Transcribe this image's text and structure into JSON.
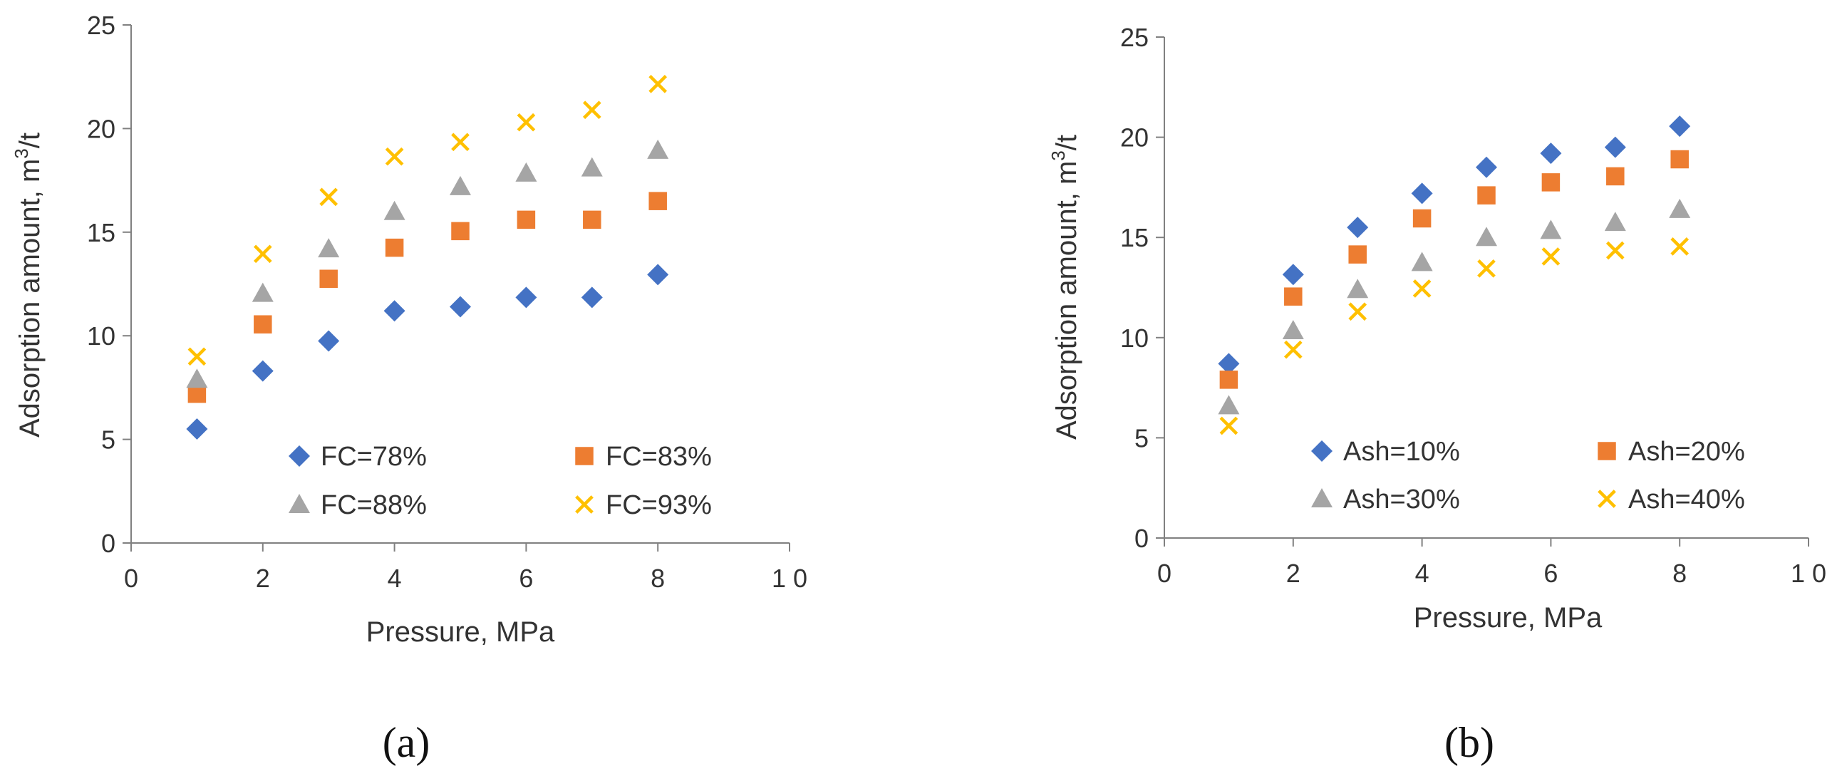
{
  "colors": {
    "diamond": "#4472C4",
    "square": "#ED7D31",
    "triangle": "#A5A5A5",
    "cross": "#FFC000",
    "axis": "#808080",
    "text": "#333333"
  },
  "chart_data": [
    {
      "type": "scatter",
      "panel_label": "(a)",
      "xlabel": "Pressure, MPa",
      "ylabel": "Adsorption amount, m³/t",
      "xlim": [
        0,
        10
      ],
      "ylim": [
        0,
        25
      ],
      "x_ticks": [
        "0",
        "2",
        "4",
        "6",
        "8",
        "1 0"
      ],
      "y_ticks": [
        "0",
        "5",
        "10",
        "15",
        "20",
        "25"
      ],
      "grid": false,
      "legend": "inside, lower-right, two columns",
      "series": [
        {
          "name": "FC=78%",
          "marker": "diamond",
          "x": [
            1,
            2,
            3,
            4,
            5,
            6,
            7,
            8
          ],
          "y": [
            5.5,
            8.3,
            9.75,
            11.2,
            11.4,
            11.85,
            11.85,
            12.95
          ]
        },
        {
          "name": "FC=83%",
          "marker": "square",
          "x": [
            1,
            2,
            3,
            4,
            5,
            6,
            7,
            8
          ],
          "y": [
            7.2,
            10.55,
            12.75,
            14.25,
            15.05,
            15.6,
            15.6,
            16.5
          ]
        },
        {
          "name": "FC=88%",
          "marker": "triangle",
          "x": [
            1,
            2,
            3,
            4,
            5,
            6,
            7,
            8
          ],
          "y": [
            7.9,
            12.05,
            14.2,
            16.0,
            17.2,
            17.85,
            18.1,
            18.95
          ]
        },
        {
          "name": "FC=93%",
          "marker": "cross",
          "x": [
            1,
            2,
            3,
            4,
            5,
            6,
            7,
            8
          ],
          "y": [
            9.0,
            13.95,
            16.7,
            18.65,
            19.35,
            20.3,
            20.9,
            22.15
          ]
        }
      ]
    },
    {
      "type": "scatter",
      "panel_label": "(b)",
      "xlabel": "Pressure, MPa",
      "ylabel": "Adsorption amount, m³/t",
      "xlim": [
        0,
        10
      ],
      "ylim": [
        0,
        25
      ],
      "x_ticks": [
        "0",
        "2",
        "4",
        "6",
        "8",
        "1 0"
      ],
      "y_ticks": [
        "0",
        "5",
        "10",
        "15",
        "20",
        "25"
      ],
      "grid": false,
      "legend": "inside, lower-right, two columns",
      "series": [
        {
          "name": "Ash=10%",
          "marker": "diamond",
          "x": [
            1,
            2,
            3,
            4,
            5,
            6,
            7,
            8
          ],
          "y": [
            8.7,
            13.15,
            15.5,
            17.2,
            18.5,
            19.2,
            19.5,
            20.55
          ]
        },
        {
          "name": "Ash=20%",
          "marker": "square",
          "x": [
            1,
            2,
            3,
            4,
            5,
            6,
            7,
            8
          ],
          "y": [
            7.9,
            12.05,
            14.15,
            15.95,
            17.1,
            17.75,
            18.05,
            18.9
          ]
        },
        {
          "name": "Ash=30%",
          "marker": "triangle",
          "x": [
            1,
            2,
            3,
            4,
            5,
            6,
            7,
            8
          ],
          "y": [
            6.6,
            10.35,
            12.4,
            13.75,
            15.0,
            15.35,
            15.75,
            16.4
          ]
        },
        {
          "name": "Ash=40%",
          "marker": "cross",
          "x": [
            1,
            2,
            3,
            4,
            5,
            6,
            7,
            8
          ],
          "y": [
            5.6,
            9.4,
            11.3,
            12.45,
            13.45,
            14.05,
            14.35,
            14.55
          ]
        }
      ]
    }
  ]
}
